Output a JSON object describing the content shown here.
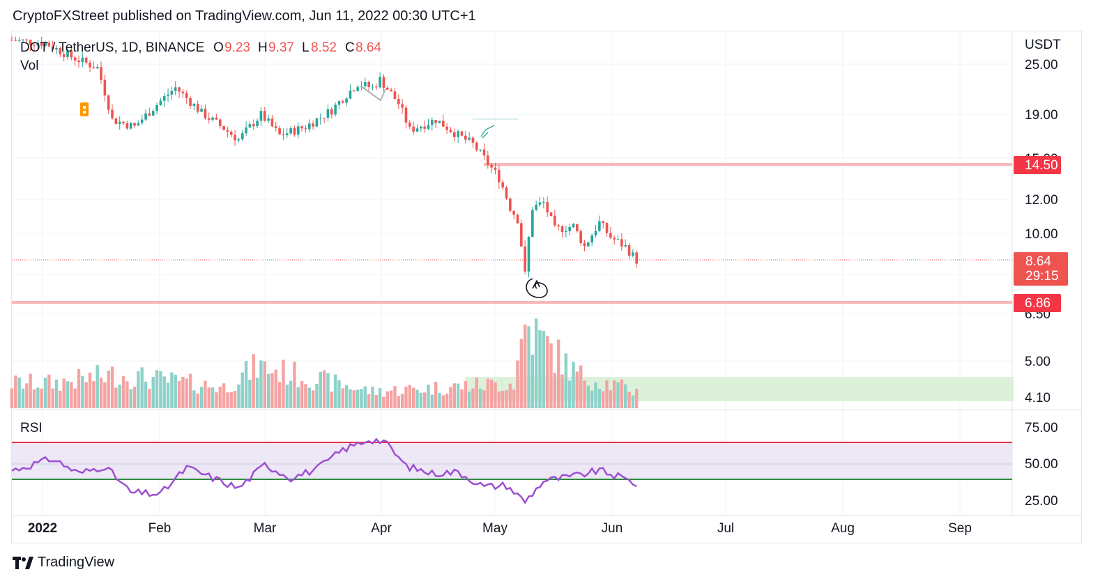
{
  "header": {
    "published_by": "CryptoFXStreet published on TradingView.com, Jun 11, 2022 00:30 UTC+1"
  },
  "footer": {
    "brand": "TradingView",
    "logo_icon": "tradingview-logo-icon"
  },
  "legend": {
    "symbol": "DOT / TetherUS, 1D, BINANCE",
    "o_label": "O",
    "o_value": "9.23",
    "h_label": "H",
    "h_value": "9.37",
    "l_label": "L",
    "l_value": "8.52",
    "c_label": "C",
    "c_value": "8.64",
    "vol_label": "Vol",
    "rsi_label": "RSI"
  },
  "price_axis": {
    "currency": "USDT",
    "ticks": [
      "25.00",
      "19.00",
      "15.00",
      "12.00",
      "10.00",
      "6.50",
      "5.00",
      "4.10"
    ],
    "last_price": "8.64",
    "countdown": "29:15",
    "level_high": "14.50",
    "level_low": "6.86"
  },
  "rsi_axis": {
    "ticks": [
      "75.00",
      "50.00",
      "25.00"
    ]
  },
  "time_axis": {
    "labels": [
      "2022",
      "Feb",
      "Mar",
      "Apr",
      "May",
      "Jun",
      "Jul",
      "Aug",
      "Sep"
    ]
  },
  "colors": {
    "up": "#26a69a",
    "down": "#ef5350",
    "level_line": "#f7b7b9",
    "rsi_line": "#9c4fd0",
    "rsi_band": "#ede7f6",
    "overbought": "#e53045",
    "oversold": "#2e8b3e",
    "volume_zone": "#d7efd4"
  },
  "chart_data": [
    {
      "type": "candlestick",
      "title": "DOT / TetherUS, 1D, BINANCE",
      "y_scale": "log",
      "ylim": [
        6.2,
        28
      ],
      "x_range": [
        "2021-12-25",
        "2022-09-20"
      ],
      "horizontal_levels": [
        14.5,
        6.86
      ],
      "last_close": 8.64,
      "series": [
        {
          "date": "2021-12-25",
          "close": 28.5
        },
        {
          "date": "2022-01-03",
          "close": 28.0
        },
        {
          "date": "2022-01-10",
          "close": 26.0
        },
        {
          "date": "2022-01-17",
          "close": 24.5
        },
        {
          "date": "2022-01-21",
          "close": 18.5
        },
        {
          "date": "2022-01-27",
          "close": 17.8
        },
        {
          "date": "2022-02-07",
          "close": 22.0
        },
        {
          "date": "2022-02-14",
          "close": 19.2
        },
        {
          "date": "2022-02-24",
          "close": 16.6
        },
        {
          "date": "2022-03-02",
          "close": 19.0
        },
        {
          "date": "2022-03-07",
          "close": 17.0
        },
        {
          "date": "2022-03-14",
          "close": 17.8
        },
        {
          "date": "2022-03-21",
          "close": 19.5
        },
        {
          "date": "2022-03-28",
          "close": 22.5
        },
        {
          "date": "2022-04-01",
          "close": 22.0
        },
        {
          "date": "2022-04-03",
          "close": 23.0
        },
        {
          "date": "2022-04-08",
          "close": 20.2
        },
        {
          "date": "2022-04-11",
          "close": 17.5
        },
        {
          "date": "2022-04-18",
          "close": 18.5
        },
        {
          "date": "2022-04-24",
          "close": 17.0
        },
        {
          "date": "2022-04-28",
          "close": 16.2
        },
        {
          "date": "2022-05-02",
          "close": 14.6
        },
        {
          "date": "2022-05-05",
          "close": 13.5
        },
        {
          "date": "2022-05-08",
          "close": 11.5
        },
        {
          "date": "2022-05-10",
          "close": 10.8
        },
        {
          "date": "2022-05-12",
          "close": 8.0
        },
        {
          "date": "2022-05-14",
          "close": 11.5
        },
        {
          "date": "2022-05-17",
          "close": 11.8
        },
        {
          "date": "2022-05-20",
          "close": 10.2
        },
        {
          "date": "2022-05-25",
          "close": 10.4
        },
        {
          "date": "2022-05-28",
          "close": 9.3
        },
        {
          "date": "2022-06-01",
          "close": 10.6
        },
        {
          "date": "2022-06-04",
          "close": 9.8
        },
        {
          "date": "2022-06-08",
          "close": 9.3
        },
        {
          "date": "2022-06-11",
          "close": 8.64
        }
      ]
    },
    {
      "type": "bar",
      "title": "Vol",
      "series": [
        {
          "date": "2022-01-05",
          "value": 3
        },
        {
          "date": "2022-01-22",
          "value": 4
        },
        {
          "date": "2022-02-20",
          "value": 2.5
        },
        {
          "date": "2022-03-01",
          "value": 5
        },
        {
          "date": "2022-04-01",
          "value": 2
        },
        {
          "date": "2022-05-09",
          "value": 3
        },
        {
          "date": "2022-05-12",
          "value": 10
        },
        {
          "date": "2022-05-26",
          "value": 4
        },
        {
          "date": "2022-06-11",
          "value": 2
        }
      ]
    },
    {
      "type": "line",
      "title": "RSI",
      "ylim": [
        20,
        80
      ],
      "levels": [
        65,
        50,
        40
      ],
      "series": [
        {
          "date": "2021-12-25",
          "value": 46
        },
        {
          "date": "2022-01-05",
          "value": 54
        },
        {
          "date": "2022-01-12",
          "value": 44
        },
        {
          "date": "2022-01-19",
          "value": 49
        },
        {
          "date": "2022-01-26",
          "value": 31
        },
        {
          "date": "2022-02-03",
          "value": 30
        },
        {
          "date": "2022-02-10",
          "value": 48
        },
        {
          "date": "2022-02-16",
          "value": 42
        },
        {
          "date": "2022-02-24",
          "value": 34
        },
        {
          "date": "2022-03-03",
          "value": 50
        },
        {
          "date": "2022-03-10",
          "value": 41
        },
        {
          "date": "2022-03-17",
          "value": 47
        },
        {
          "date": "2022-03-24",
          "value": 60
        },
        {
          "date": "2022-03-31",
          "value": 67
        },
        {
          "date": "2022-04-04",
          "value": 66
        },
        {
          "date": "2022-04-10",
          "value": 49
        },
        {
          "date": "2022-04-17",
          "value": 44
        },
        {
          "date": "2022-04-24",
          "value": 45
        },
        {
          "date": "2022-05-01",
          "value": 35
        },
        {
          "date": "2022-05-07",
          "value": 36
        },
        {
          "date": "2022-05-12",
          "value": 25
        },
        {
          "date": "2022-05-17",
          "value": 39
        },
        {
          "date": "2022-05-25",
          "value": 42
        },
        {
          "date": "2022-06-01",
          "value": 46
        },
        {
          "date": "2022-06-07",
          "value": 41
        },
        {
          "date": "2022-06-11",
          "value": 37
        }
      ]
    }
  ]
}
